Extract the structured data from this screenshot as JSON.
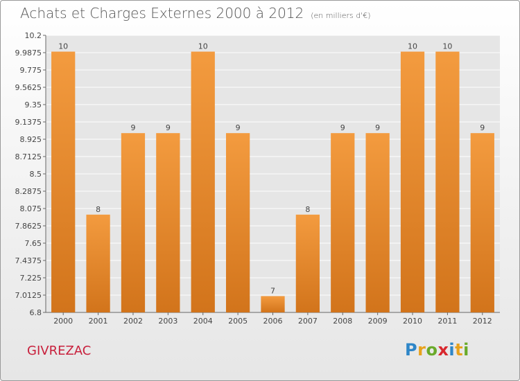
{
  "header": {
    "title": "Achats et Charges Externes 2000 à 2012",
    "subtitle": "(en milliers d'€)"
  },
  "commune": "GIVREZAC",
  "logo": {
    "text": "Proxiti",
    "letters": [
      "P",
      "r",
      "o",
      "x",
      "i",
      "t",
      "i"
    ]
  },
  "colors": {
    "bar": "#f39b3f",
    "bar_dark": "#d2741b",
    "grid": "#ffffff",
    "plot_bg": "#e6e6e6"
  },
  "chart_data": {
    "type": "bar",
    "title": "Achats et Charges Externes 2000 à 2012",
    "categories": [
      "2000",
      "2001",
      "2002",
      "2003",
      "2004",
      "2005",
      "2006",
      "2007",
      "2008",
      "2009",
      "2010",
      "2011",
      "2012"
    ],
    "values": [
      10,
      8,
      9,
      9,
      10,
      9,
      7,
      8,
      9,
      9,
      10,
      10,
      9
    ],
    "data_labels": [
      "10",
      "8",
      "9",
      "9",
      "10",
      "9",
      "7",
      "8",
      "9",
      "9",
      "10",
      "10",
      "9"
    ],
    "ylim": [
      6.8,
      10.2
    ],
    "yticks": [
      6.8,
      7.0125,
      7.225,
      7.4375,
      7.65,
      7.8625,
      8.075,
      8.2875,
      8.5,
      8.7125,
      8.925,
      9.1375,
      9.35,
      9.5625,
      9.775,
      9.9875,
      10.2
    ],
    "ytick_labels": [
      "6.8",
      "7.0125",
      "7.225",
      "7.4375",
      "7.65",
      "7.8625",
      "8.075",
      "8.2875",
      "8.5",
      "8.7125",
      "8.925",
      "9.1375",
      "9.35",
      "9.5625",
      "9.775",
      "9.9875",
      "10.2"
    ],
    "grid": true,
    "legend": "none"
  }
}
